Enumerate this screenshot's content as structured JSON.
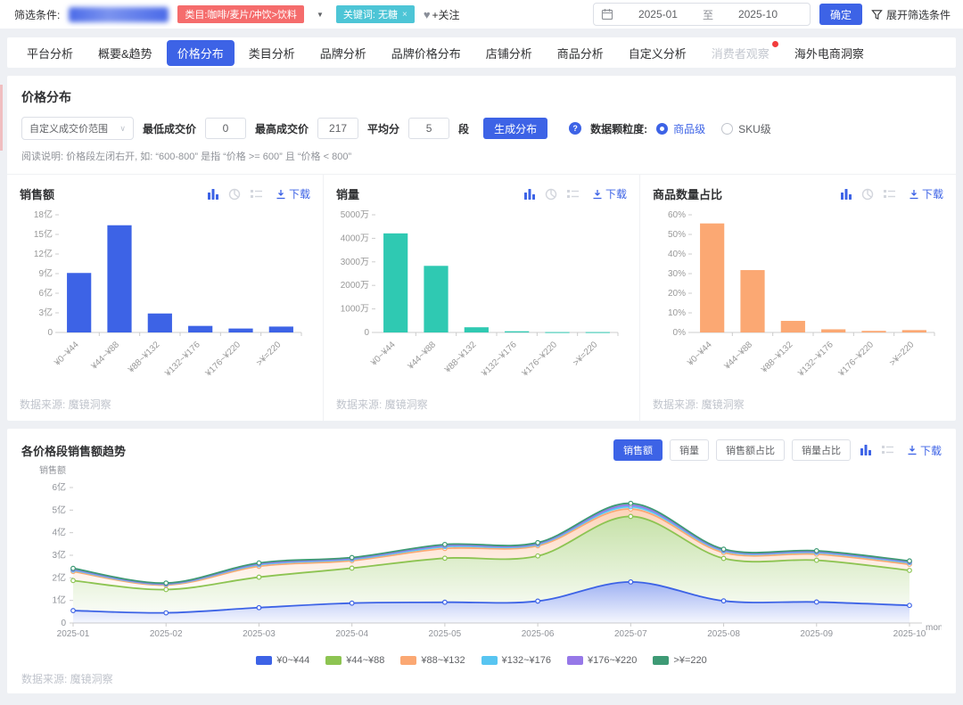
{
  "header": {
    "filter_label": "筛选条件:",
    "category_tag": "类目:咖啡/麦片/冲饮>饮料",
    "keyword_tag": "关键词: 无糖",
    "keyword_close": "×",
    "follow_label": "+关注",
    "date_start": "2025-01",
    "date_to": "至",
    "date_end": "2025-10",
    "confirm_button": "确定",
    "expand_filters": "展开筛选条件"
  },
  "tabs": {
    "items": [
      {
        "label": "平台分析"
      },
      {
        "label": "概要&趋势"
      },
      {
        "label": "价格分布",
        "active": true
      },
      {
        "label": "类目分析"
      },
      {
        "label": "品牌分析"
      },
      {
        "label": "品牌价格分布"
      },
      {
        "label": "店铺分析"
      },
      {
        "label": "商品分析"
      },
      {
        "label": "自定义分析"
      },
      {
        "label": "消费者观察",
        "muted": true,
        "dot": true
      },
      {
        "label": "海外电商洞察"
      }
    ]
  },
  "price_section": {
    "title": "价格分布",
    "range_select": "自定义成交价范围",
    "min_label": "最低成交价",
    "min_value": "0",
    "max_label": "最高成交价",
    "max_value": "217",
    "avg_label": "平均分",
    "avg_value": "5",
    "seg_label": "段",
    "generate_button": "生成分布",
    "granularity_label": "数据颗粒度:",
    "granularity_on": "商品级",
    "granularity_off": "SKU级",
    "note": "阅读说明: 价格段左闭右开, 如: “600-800” 是指 “价格 >= 600” 且 “价格 < 800”"
  },
  "common": {
    "download_label": "下载",
    "datasource": "数据来源: 魔镜洞察"
  },
  "trend_section": {
    "title": "各价格段销售额趋势",
    "toggle_buttons": [
      {
        "label": "销售额",
        "active": true
      },
      {
        "label": "销量"
      },
      {
        "label": "销售额占比"
      },
      {
        "label": "销量占比"
      }
    ]
  },
  "chart_data": [
    {
      "type": "bar",
      "title": "销售额",
      "categories": [
        "¥0~¥44",
        "¥44~¥88",
        "¥88~¥132",
        "¥132~¥176",
        "¥176~¥220",
        ">¥=220"
      ],
      "values": [
        9.1,
        16.4,
        2.9,
        1.0,
        0.6,
        0.9
      ],
      "unit": "亿",
      "color": "#3d63e6",
      "ylim": [
        0,
        18
      ],
      "yticks": [
        0,
        3,
        6,
        9,
        12,
        15,
        18
      ],
      "ytick_labels": [
        "0",
        "3亿",
        "6亿",
        "9亿",
        "12亿",
        "15亿",
        "18亿"
      ]
    },
    {
      "type": "bar",
      "title": "销量",
      "categories": [
        "¥0~¥44",
        "¥44~¥88",
        "¥88~¥132",
        "¥132~¥176",
        "¥176~¥220",
        ">¥=220"
      ],
      "values": [
        4210,
        2830,
        220,
        50,
        15,
        15
      ],
      "unit": "万",
      "color": "#2fc9b2",
      "ylim": [
        0,
        5000
      ],
      "yticks": [
        0,
        1000,
        2000,
        3000,
        4000,
        5000
      ],
      "ytick_labels": [
        "0",
        "1000万",
        "2000万",
        "3000万",
        "4000万",
        "5000万"
      ]
    },
    {
      "type": "bar",
      "title": "商品数量占比",
      "categories": [
        "¥0~¥44",
        "¥44~¥88",
        "¥88~¥132",
        "¥132~¥176",
        "¥176~¥220",
        ">¥=220"
      ],
      "values": [
        55.6,
        31.8,
        5.9,
        1.6,
        0.8,
        1.2
      ],
      "unit": "%",
      "color": "#fba873",
      "ylim": [
        0,
        60
      ],
      "yticks": [
        0,
        10,
        20,
        30,
        40,
        50,
        60
      ],
      "ytick_labels": [
        "0%",
        "10%",
        "20%",
        "30%",
        "40%",
        "50%",
        "60%"
      ]
    },
    {
      "type": "area",
      "stacked": true,
      "title": "各价格段销售额趋势",
      "ylabel": "销售额",
      "xlabel": "month",
      "x": [
        "2025-01",
        "2025-02",
        "2025-03",
        "2025-04",
        "2025-05",
        "2025-06",
        "2025-07",
        "2025-08",
        "2025-09",
        "2025-10"
      ],
      "ylim": [
        0,
        6
      ],
      "yticks": [
        0,
        1,
        2,
        3,
        4,
        5,
        6
      ],
      "ytick_labels": [
        "0",
        "1亿",
        "2亿",
        "3亿",
        "4亿",
        "5亿",
        "6亿"
      ],
      "series": [
        {
          "name": "¥0~¥44",
          "color": "#3d63e6",
          "values": [
            0.55,
            0.45,
            0.68,
            0.88,
            0.92,
            0.97,
            1.82,
            0.98,
            0.93,
            0.78
          ]
        },
        {
          "name": "¥44~¥88",
          "color": "#8dc452",
          "values": [
            1.33,
            1.03,
            1.35,
            1.55,
            1.95,
            2.0,
            2.9,
            1.88,
            1.85,
            1.55
          ]
        },
        {
          "name": "¥88~¥132",
          "color": "#fba873",
          "values": [
            0.4,
            0.2,
            0.48,
            0.33,
            0.43,
            0.45,
            0.33,
            0.26,
            0.27,
            0.27
          ]
        },
        {
          "name": "¥132~¥176",
          "color": "#58c5f1",
          "values": [
            0.06,
            0.04,
            0.07,
            0.06,
            0.08,
            0.06,
            0.1,
            0.07,
            0.07,
            0.07
          ]
        },
        {
          "name": "¥176~¥220",
          "color": "#9678e8",
          "values": [
            0.04,
            0.02,
            0.04,
            0.04,
            0.05,
            0.04,
            0.07,
            0.04,
            0.04,
            0.04
          ]
        },
        {
          "name": ">¥=220",
          "color": "#3e9a75",
          "values": [
            0.04,
            0.03,
            0.04,
            0.04,
            0.05,
            0.04,
            0.08,
            0.04,
            0.04,
            0.04
          ]
        }
      ]
    }
  ]
}
